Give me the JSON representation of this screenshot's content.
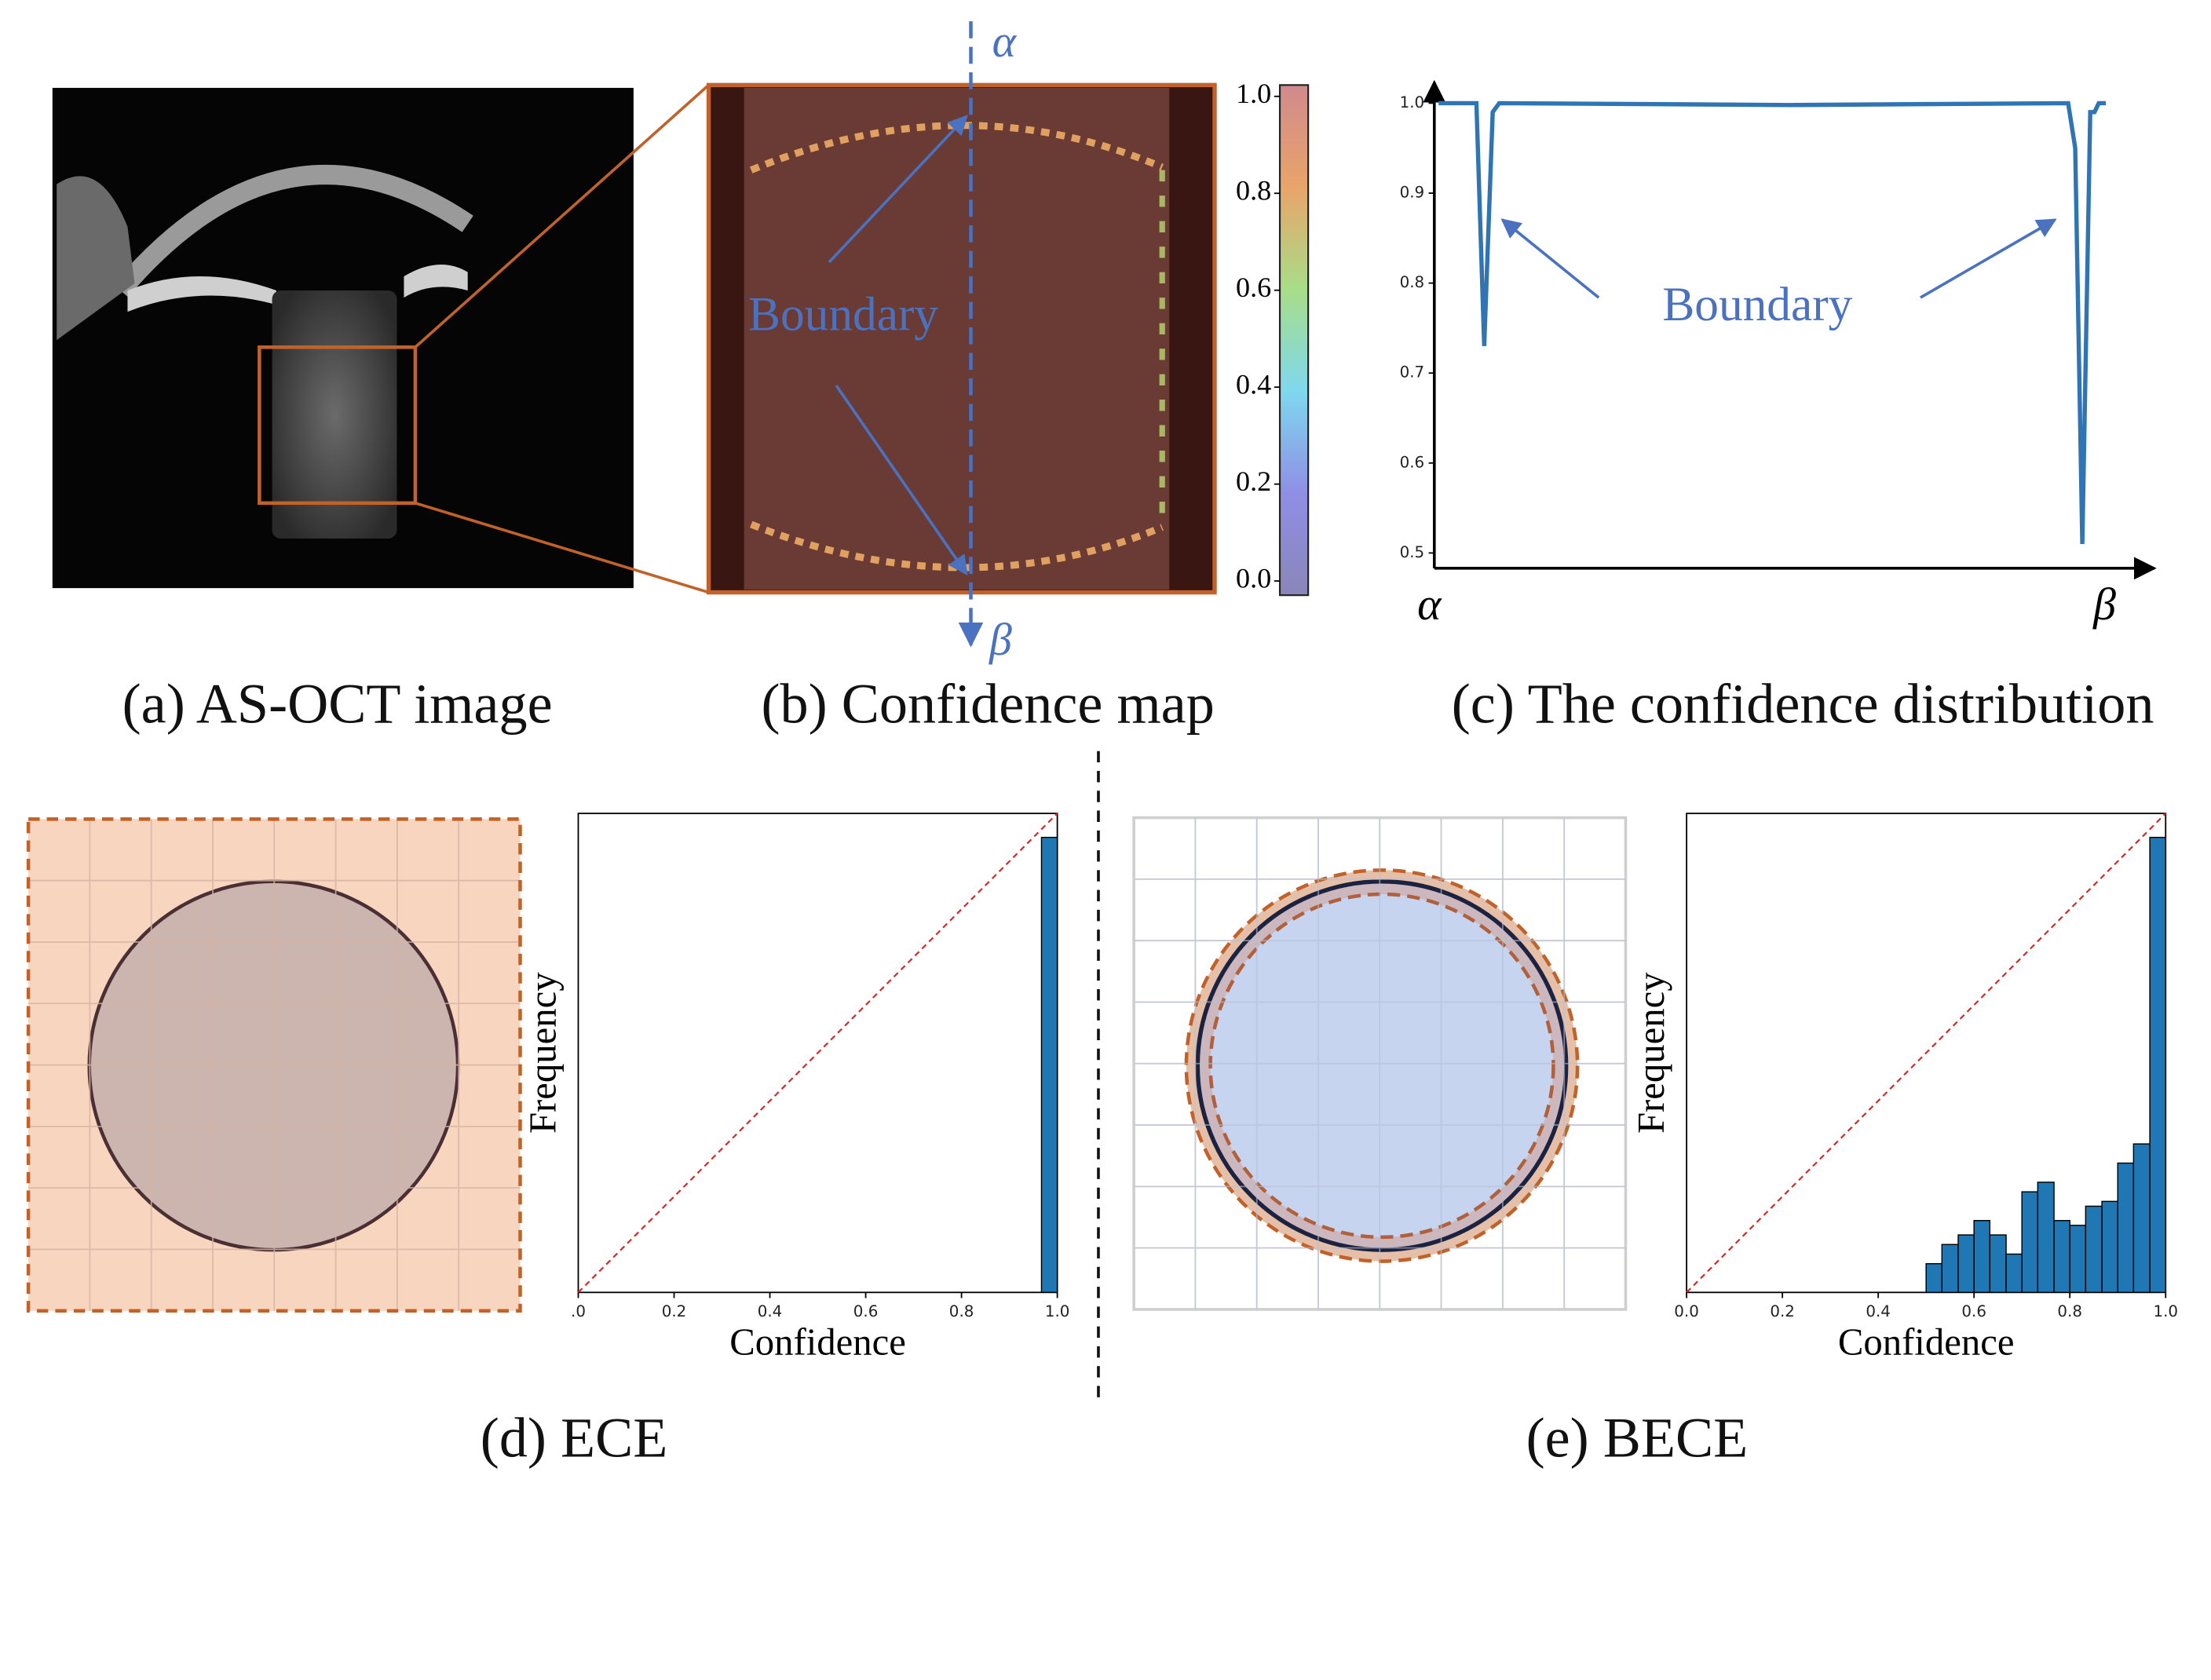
{
  "panels": {
    "a": {
      "caption": "(a) AS-OCT image"
    },
    "b": {
      "caption": "(b) Confidence map",
      "top_label": "α",
      "bottom_label": "β",
      "annotation": "Boundary"
    }
  },
  "chart_data": [
    {
      "type": "line",
      "caption": "(c) The confidence distribution",
      "annotation": "Boundary",
      "axis_end_labels": [
        "α",
        "β"
      ],
      "color": "#2f74b5",
      "x": [
        0.6,
        5.9,
        7.0,
        8.2,
        9.1,
        50,
        88.9,
        89.9,
        90.9,
        92.0,
        92.6,
        93.2,
        94.2
      ],
      "values": [
        1.0,
        1.0,
        0.73,
        0.99,
        1.0,
        0.998,
        1.0,
        0.95,
        0.51,
        0.99,
        0.99,
        1.0,
        1.0
      ],
      "xlim": [
        0,
        100
      ],
      "ylim": [
        0.483,
        1.017
      ],
      "yticks": [
        0.5,
        0.6,
        0.7,
        0.8,
        0.9,
        {
          "value": 1,
          "label": "1.0"
        }
      ]
    },
    {
      "type": "histogram",
      "caption": "(d) ECE",
      "xlabel": "Confidence",
      "ylabel": "Frequency",
      "color": "#1f77b4",
      "bins": [
        0.967,
        1.0
      ],
      "counts": [
        0.95
      ],
      "xlim": [
        0,
        1
      ],
      "ylim": [
        0,
        1
      ],
      "xticks": [
        {
          "value": 0,
          "label": ".0"
        },
        0.2,
        0.4,
        0.6,
        0.8,
        {
          "value": 1,
          "label": "1.0"
        }
      ]
    },
    {
      "type": "histogram",
      "caption": "(e) BECE",
      "xlabel": "Confidence",
      "ylabel": "Frequency",
      "color": "#1f77b4",
      "bins": [
        0.5,
        0.533,
        0.567,
        0.6,
        0.633,
        0.667,
        0.7,
        0.733,
        0.767,
        0.8,
        0.833,
        0.867,
        0.9,
        0.933,
        0.967,
        1.0
      ],
      "counts": [
        0.06,
        0.1,
        0.12,
        0.15,
        0.12,
        0.08,
        0.21,
        0.23,
        0.15,
        0.14,
        0.18,
        0.19,
        0.27,
        0.31,
        0.95
      ],
      "xlim": [
        0,
        1
      ],
      "ylim": [
        0,
        1
      ],
      "xticks": [
        {
          "value": 0,
          "label": "0.0"
        },
        0.2,
        0.4,
        0.6,
        0.8,
        {
          "value": 1,
          "label": "1.0"
        }
      ]
    },
    {
      "type": "colorbar",
      "ylim": [
        0,
        1
      ],
      "yticks": [
        {
          "value": 0,
          "label": "0.0"
        },
        0.2,
        0.4,
        0.6,
        0.8,
        {
          "value": 1,
          "label": "1.0"
        }
      ]
    }
  ]
}
